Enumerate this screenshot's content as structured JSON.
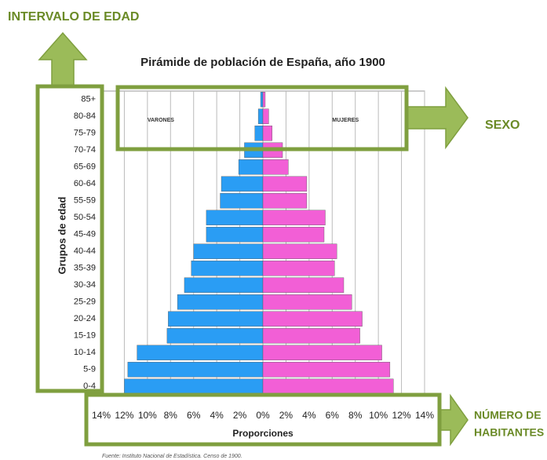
{
  "chart_data": {
    "type": "pyramid",
    "title": "Pirámide de población de España, año 1900",
    "x_label": "Proporciones",
    "y_label": "Grupos de edad",
    "source": "Fuente: Instituto Nacional de Estadística. Censo de 1900.",
    "categories": [
      "0-4",
      "5-9",
      "10-14",
      "15-19",
      "20-24",
      "25-29",
      "30-34",
      "35-39",
      "40-44",
      "45-49",
      "50-54",
      "55-59",
      "60-64",
      "65-69",
      "70-74",
      "75-79",
      "80-84",
      "85+"
    ],
    "series": [
      {
        "name": "VARONES",
        "color": "#2a9df4",
        "side": "left",
        "values": [
          12.0,
          11.7,
          10.9,
          8.3,
          8.2,
          7.4,
          6.8,
          6.2,
          6.0,
          4.9,
          4.9,
          3.7,
          3.6,
          2.1,
          1.6,
          0.7,
          0.4,
          0.2
        ]
      },
      {
        "name": "MUJERES",
        "color": "#f25fd6",
        "side": "right",
        "values": [
          11.3,
          11.0,
          10.3,
          8.4,
          8.6,
          7.7,
          7.0,
          6.2,
          6.4,
          5.3,
          5.4,
          3.8,
          3.8,
          2.2,
          1.7,
          0.8,
          0.5,
          0.2
        ]
      }
    ],
    "xlim": [
      -14,
      14
    ],
    "xticks": [
      {
        "value": -14,
        "label": "14%"
      },
      {
        "value": -12,
        "label": "12%"
      },
      {
        "value": -10,
        "label": "10%"
      },
      {
        "value": -8,
        "label": "8%"
      },
      {
        "value": -6,
        "label": "6%"
      },
      {
        "value": -4,
        "label": "4%"
      },
      {
        "value": -2,
        "label": "2%"
      },
      {
        "value": 0,
        "label": "0%"
      },
      {
        "value": 2,
        "label": "2%"
      },
      {
        "value": 4,
        "label": "4%"
      },
      {
        "value": 6,
        "label": "6%"
      },
      {
        "value": 8,
        "label": "8%"
      },
      {
        "value": 10,
        "label": "10%"
      },
      {
        "value": 12,
        "label": "12%"
      },
      {
        "value": 14,
        "label": "14%"
      }
    ],
    "grid": true,
    "annotations": [
      "INTERVALO DE EDAD",
      "SEXO",
      "NÚMERO DE",
      "HABITANTES"
    ]
  }
}
